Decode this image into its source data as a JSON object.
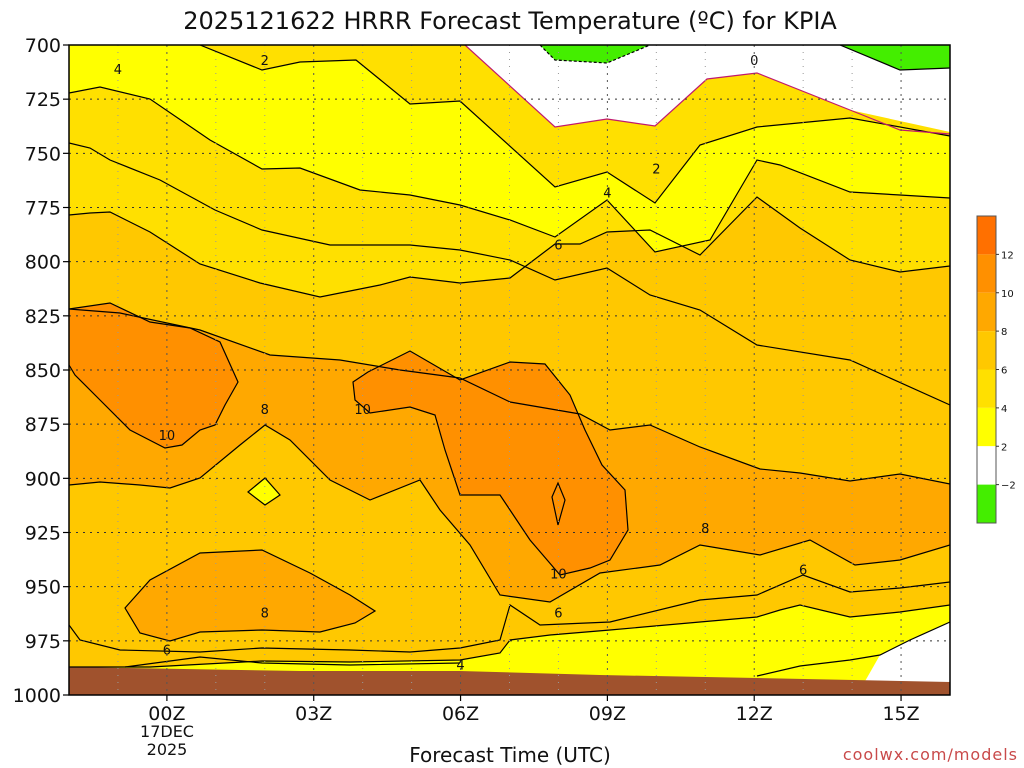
{
  "chart_data": {
    "type": "heatmap",
    "title": "2025121622 HRRR Forecast Temperature (ºC) for KPIA",
    "xlabel": "Forecast Time (UTC)",
    "ylabel": "",
    "x_ticks": [
      "00Z",
      "03Z",
      "06Z",
      "09Z",
      "12Z",
      "15Z"
    ],
    "x_tick_hours": [
      0,
      3,
      6,
      9,
      12,
      15
    ],
    "x_range_hours": [
      -2,
      16
    ],
    "date_label": [
      "17DEC",
      "2025"
    ],
    "y_ticks": [
      "700",
      "725",
      "750",
      "775",
      "800",
      "825",
      "850",
      "875",
      "900",
      "925",
      "950",
      "975",
      "1000"
    ],
    "y_tick_values": [
      700,
      725,
      750,
      775,
      800,
      825,
      850,
      875,
      900,
      925,
      950,
      975,
      1000
    ],
    "y_range_hpa": [
      700,
      1000
    ],
    "grid": true,
    "colorbar": {
      "levels": [
        -2,
        2,
        4,
        6,
        8,
        10,
        12
      ],
      "level_labels": [
        "−2",
        "2",
        "4",
        "6",
        "8",
        "10",
        "12"
      ],
      "colors": [
        "#44ee00",
        "#ffffff",
        "#ffff00",
        "#ffe000",
        "#ffc800",
        "#ffa800",
        "#ff9000",
        "#ff7000"
      ]
    },
    "ground_color": "#a0522d",
    "contour_labels": [
      {
        "text": "2",
        "h": 2.0,
        "p": 707
      },
      {
        "text": "4",
        "h": -1.0,
        "p": 711
      },
      {
        "text": "0",
        "h": 12.0,
        "p": 707
      },
      {
        "text": "2",
        "h": 10.0,
        "p": 757
      },
      {
        "text": "4",
        "h": 9.0,
        "p": 768
      },
      {
        "text": "6",
        "h": 8.0,
        "p": 792
      },
      {
        "text": "8",
        "h": 2.0,
        "p": 868
      },
      {
        "text": "10",
        "h": 4.0,
        "p": 868
      },
      {
        "text": "10",
        "h": 0.0,
        "p": 880
      },
      {
        "text": "8",
        "h": 11.0,
        "p": 923
      },
      {
        "text": "6",
        "h": 13.0,
        "p": 942
      },
      {
        "text": "10",
        "h": 8.0,
        "p": 944
      },
      {
        "text": "6",
        "h": 8.0,
        "p": 962
      },
      {
        "text": "8",
        "h": 2.0,
        "p": 962
      },
      {
        "text": "6",
        "h": 0.0,
        "p": 979
      },
      {
        "text": "4",
        "h": 6.0,
        "p": 986
      }
    ],
    "watermark": "coolwx.com/models"
  }
}
